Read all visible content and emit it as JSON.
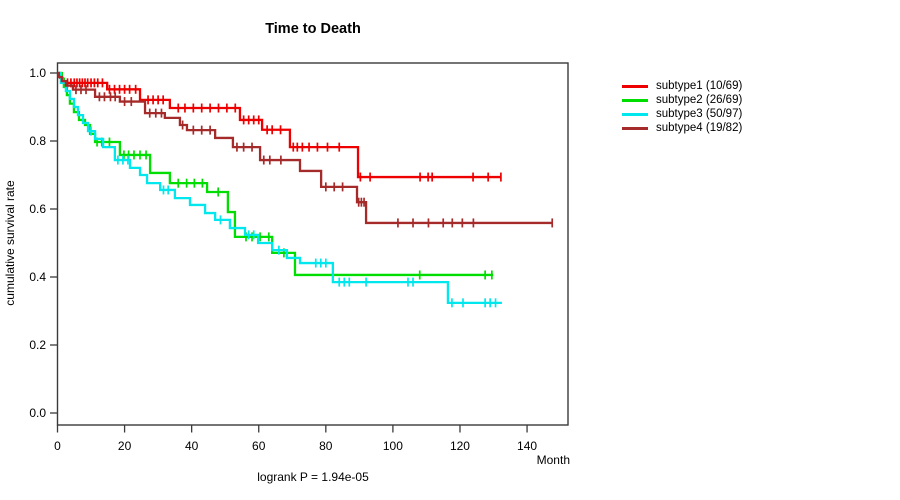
{
  "title": "Time to Death",
  "footer": "logrank P = 1.94e-05",
  "chart_data": {
    "type": "line",
    "subtype": "kaplan-meier-step-curves",
    "title": "Time to Death",
    "xlabel": "Month",
    "ylabel": "cumulative survival rate",
    "xlim": [
      0,
      152
    ],
    "ylim": [
      0.0,
      1.0
    ],
    "x_ticks": [
      0,
      20,
      40,
      60,
      80,
      100,
      120,
      140
    ],
    "y_ticks": [
      "0.0",
      "0.2",
      "0.4",
      "0.6",
      "0.8",
      "1.0"
    ],
    "grid": false,
    "legend_position": "right-outside",
    "annotation": "logrank P = 1.94e-05",
    "series": [
      {
        "name": "subtype1 (10/69)",
        "color": "#EE0000",
        "end": 132.2,
        "steps": [
          [
            0,
            1.0
          ],
          [
            0.8,
            0.986
          ],
          [
            1.5,
            0.971
          ],
          [
            14.8,
            0.952
          ],
          [
            24.6,
            0.921
          ],
          [
            33.5,
            0.897
          ],
          [
            54.4,
            0.862
          ],
          [
            61,
            0.833
          ],
          [
            69.3,
            0.782
          ],
          [
            89.6,
            0.694
          ]
        ],
        "censors": [
          3,
          4,
          5,
          5.8,
          6.6,
          7.4,
          8.2,
          9,
          10,
          11,
          12,
          13.4,
          15.5,
          17,
          18.5,
          20,
          21.5,
          23.3,
          27,
          28.5,
          30,
          31.5,
          36,
          38,
          40.5,
          43,
          45.5,
          48,
          50.5,
          53,
          55.5,
          57,
          58.5,
          60,
          62.5,
          64,
          66.5,
          70.3,
          71.5,
          73,
          75,
          77.5,
          80.5,
          84,
          90.3,
          93.2,
          108.1,
          110.5,
          111.7,
          123.9,
          128.4,
          132.2
        ]
      },
      {
        "name": "subtype2 (26/69)",
        "color": "#00DD00",
        "end": 129.9,
        "steps": [
          [
            0,
            1.0
          ],
          [
            1.3,
            0.983
          ],
          [
            1.9,
            0.959
          ],
          [
            2.8,
            0.935
          ],
          [
            3.7,
            0.91
          ],
          [
            4.9,
            0.885
          ],
          [
            6.4,
            0.862
          ],
          [
            8.2,
            0.847
          ],
          [
            9.7,
            0.821
          ],
          [
            11.2,
            0.797
          ],
          [
            18.6,
            0.759
          ],
          [
            27.6,
            0.706
          ],
          [
            33.5,
            0.676
          ],
          [
            44.6,
            0.65
          ],
          [
            50.8,
            0.591
          ],
          [
            52.9,
            0.518
          ],
          [
            64,
            0.471
          ],
          [
            70.8,
            0.406
          ]
        ],
        "censors": [
          11.8,
          13.2,
          15.5,
          19.8,
          21.2,
          22.8,
          24.6,
          26.4,
          36,
          38.5,
          40.8,
          43.2,
          47.9,
          56.2,
          58,
          60.4,
          63,
          67.5,
          108,
          127.5,
          129.5
        ]
      },
      {
        "name": "subtype3 (50/97)",
        "color": "#00E8EE",
        "end": 132.5,
        "steps": [
          [
            0,
            1.0
          ],
          [
            1,
            0.971
          ],
          [
            2.5,
            0.947
          ],
          [
            3.7,
            0.924
          ],
          [
            4.9,
            0.9
          ],
          [
            6.1,
            0.876
          ],
          [
            7.6,
            0.853
          ],
          [
            9.1,
            0.829
          ],
          [
            11.2,
            0.806
          ],
          [
            13.6,
            0.782
          ],
          [
            17.1,
            0.744
          ],
          [
            21.6,
            0.721
          ],
          [
            24.6,
            0.7
          ],
          [
            26.7,
            0.676
          ],
          [
            30.6,
            0.656
          ],
          [
            35,
            0.632
          ],
          [
            39.5,
            0.612
          ],
          [
            44,
            0.588
          ],
          [
            47,
            0.568
          ],
          [
            51.4,
            0.544
          ],
          [
            55.9,
            0.524
          ],
          [
            59.8,
            0.5
          ],
          [
            64,
            0.479
          ],
          [
            68.4,
            0.456
          ],
          [
            72.3,
            0.441
          ],
          [
            82.1,
            0.385
          ],
          [
            116.4,
            0.324
          ]
        ],
        "censors": [
          10,
          18,
          19.5,
          21,
          31.6,
          33,
          48.6,
          57,
          58.5,
          66,
          77,
          78.5,
          80,
          84,
          85.5,
          87,
          92,
          104.5,
          106,
          117.6,
          120.9,
          127.5,
          129,
          130.6
        ]
      },
      {
        "name": "subtype4 (19/82)",
        "color": "#A52A2A",
        "end": 147.5,
        "steps": [
          [
            0,
            1.0
          ],
          [
            0.4,
            0.988
          ],
          [
            1.3,
            0.976
          ],
          [
            2.5,
            0.963
          ],
          [
            4.6,
            0.951
          ],
          [
            11.2,
            0.93
          ],
          [
            18.6,
            0.916
          ],
          [
            26.1,
            0.882
          ],
          [
            32,
            0.868
          ],
          [
            36.5,
            0.847
          ],
          [
            38.6,
            0.832
          ],
          [
            47,
            0.809
          ],
          [
            52.3,
            0.782
          ],
          [
            60.4,
            0.744
          ],
          [
            72.3,
            0.712
          ],
          [
            78.6,
            0.665
          ],
          [
            89.3,
            0.62
          ],
          [
            92,
            0.559
          ]
        ],
        "censors": [
          5.5,
          7,
          8.5,
          12.5,
          14,
          15.8,
          17.2,
          20,
          22,
          27.5,
          29.3,
          31,
          37.3,
          40.5,
          43,
          45.5,
          53.5,
          55.5,
          58,
          61.5,
          63.3,
          66.6,
          80,
          82.5,
          85,
          89.8,
          90.6,
          91.4,
          101.5,
          106,
          110.6,
          115,
          117.7,
          120.7,
          124,
          147.5
        ]
      }
    ]
  }
}
